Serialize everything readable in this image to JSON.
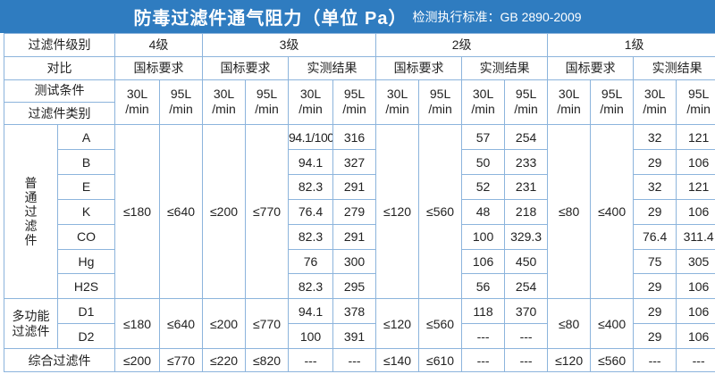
{
  "title": {
    "main": "防毒过滤件通气阻力（单位 Pa）",
    "standard": "检测执行标准：GB 2890-2009"
  },
  "labels": {
    "filter_level": "过滤件级别",
    "comparison": "对比",
    "test_condition": "测试条件",
    "filter_type": "过滤件类别",
    "general_filter": "普通过滤件",
    "multi_filter": "多功能过滤件",
    "combined_filter": "综合过滤件"
  },
  "levels": [
    "4级",
    "3级",
    "2级",
    "1级"
  ],
  "compare": {
    "national": "国标要求",
    "measured": "实测结果"
  },
  "flow": {
    "l30": "30L",
    "l95": "95L",
    "per_min": "/min"
  },
  "standards": {
    "general": {
      "lv4_30": "≤180",
      "lv4_95": "≤640",
      "lv3_30": "≤200",
      "lv3_95": "≤770",
      "lv2_30": "≤120",
      "lv2_95": "≤560",
      "lv1_30": "≤80",
      "lv1_95": "≤400"
    },
    "multi": {
      "lv4_30": "≤180",
      "lv4_95": "≤640",
      "lv3_30": "≤200",
      "lv3_95": "≤770",
      "lv2_30": "≤120",
      "lv2_95": "≤560",
      "lv1_30": "≤80",
      "lv1_95": "≤400"
    }
  },
  "general_rows": [
    {
      "type": "A",
      "lv3_30": "94.1/100",
      "lv3_95": "316",
      "lv2_30": "57",
      "lv2_95": "254",
      "lv1_30": "32",
      "lv1_95": "121"
    },
    {
      "type": "B",
      "lv3_30": "94.1",
      "lv3_95": "327",
      "lv2_30": "50",
      "lv2_95": "233",
      "lv1_30": "29",
      "lv1_95": "106"
    },
    {
      "type": "E",
      "lv3_30": "82.3",
      "lv3_95": "291",
      "lv2_30": "52",
      "lv2_95": "231",
      "lv1_30": "32",
      "lv1_95": "121"
    },
    {
      "type": "K",
      "lv3_30": "76.4",
      "lv3_95": "279",
      "lv2_30": "48",
      "lv2_95": "218",
      "lv1_30": "29",
      "lv1_95": "106"
    },
    {
      "type": "CO",
      "lv3_30": "82.3",
      "lv3_95": "291",
      "lv2_30": "100",
      "lv2_95": "329.3",
      "lv1_30": "76.4",
      "lv1_95": "311.4"
    },
    {
      "type": "Hg",
      "lv3_30": "76",
      "lv3_95": "300",
      "lv2_30": "106",
      "lv2_95": "450",
      "lv1_30": "75",
      "lv1_95": "305"
    },
    {
      "type": "H2S",
      "lv3_30": "82.3",
      "lv3_95": "295",
      "lv2_30": "56",
      "lv2_95": "254",
      "lv1_30": "29",
      "lv1_95": "106"
    }
  ],
  "multi_rows": [
    {
      "type": "D1",
      "lv3_30": "94.1",
      "lv3_95": "378",
      "lv2_30": "118",
      "lv2_95": "370",
      "lv1_30": "29",
      "lv1_95": "106"
    },
    {
      "type": "D2",
      "lv3_30": "100",
      "lv3_95": "391",
      "lv2_30": "---",
      "lv2_95": "---",
      "lv1_30": "29",
      "lv1_95": "106"
    }
  ],
  "combined_row": {
    "lv4_30": "≤200",
    "lv4_95": "≤770",
    "lv3_30": "≤220",
    "lv3_95": "≤820",
    "lv3_m30": "---",
    "lv3_m95": "---",
    "lv2_30": "≤140",
    "lv2_95": "≤610",
    "lv2_m30": "---",
    "lv2_m95": "---",
    "lv1_30": "≤120",
    "lv1_95": "≤560",
    "lv1_m30": "---",
    "lv1_m95": "---"
  },
  "colors": {
    "header_bg": "#2f7cc0",
    "label_text": "#2f7cc0",
    "border": "#8cb4dc"
  }
}
